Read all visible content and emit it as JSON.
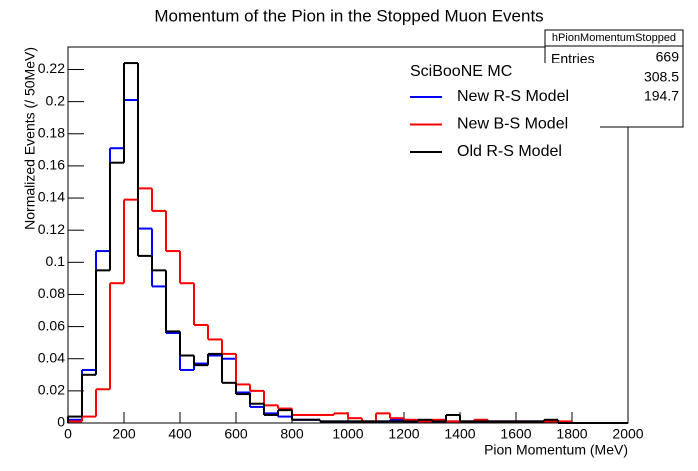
{
  "chart_data": {
    "type": "histogram",
    "title": "Momentum of the Pion in the Stopped Muon Events",
    "x_label": "Pion Momentum (MeV)",
    "y_label": "Normalized Events (/ 50MeV)",
    "bins": [
      0,
      50,
      100,
      150,
      200,
      250,
      300,
      350,
      400,
      450,
      500,
      550,
      600,
      650,
      700,
      750,
      800,
      850,
      900,
      950,
      1000,
      1050,
      1100,
      1150,
      1200,
      1250,
      1300,
      1350,
      1400,
      1450,
      1500,
      1550,
      1600,
      1650,
      1700,
      1750,
      1800,
      1850,
      1900,
      1950,
      2000
    ],
    "legend_title": "SciBooNE MC",
    "series": [
      {
        "name": "New R-S Model",
        "color": "#0000ff",
        "values": [
          0.002,
          0.033,
          0.107,
          0.171,
          0.201,
          0.121,
          0.085,
          0.056,
          0.033,
          0.037,
          0.042,
          0.04,
          0.019,
          0.01,
          0.006,
          0.004,
          0.002,
          0.002,
          0.001,
          0.001,
          0.001,
          0.001,
          0.001,
          0.002,
          0.001,
          0.001,
          0.001,
          0.001,
          0.001,
          0.001,
          0.001,
          0.001,
          0.001,
          0.001,
          0.001,
          0,
          0,
          0,
          0,
          0
        ]
      },
      {
        "name": "New B-S Model",
        "color": "#ff0000",
        "values": [
          0.001,
          0.004,
          0.021,
          0.087,
          0.139,
          0.146,
          0.132,
          0.107,
          0.087,
          0.061,
          0.052,
          0.043,
          0.024,
          0.02,
          0.011,
          0.009,
          0.005,
          0.005,
          0.005,
          0.006,
          0.003,
          0.001,
          0.006,
          0.003,
          0.002,
          0.001,
          0.002,
          0.001,
          0.001,
          0.002,
          0.001,
          0.001,
          0.001,
          0.001,
          0.001,
          0.001,
          0,
          0,
          0,
          0
        ]
      },
      {
        "name": "Old R-S Model",
        "color": "#000000",
        "values": [
          0.004,
          0.03,
          0.095,
          0.162,
          0.224,
          0.104,
          0.095,
          0.057,
          0.042,
          0.036,
          0.043,
          0.025,
          0.018,
          0.012,
          0.005,
          0.008,
          0.002,
          0.002,
          0.001,
          0.001,
          0.001,
          0.001,
          0.001,
          0.001,
          0.001,
          0.002,
          0.001,
          0.005,
          0.001,
          0.001,
          0.001,
          0.001,
          0.001,
          0.001,
          0.002,
          0,
          0,
          0,
          0,
          0
        ]
      }
    ],
    "xlim": [
      0,
      2000
    ],
    "xticks": [
      0,
      200,
      400,
      600,
      800,
      1000,
      1200,
      1400,
      1600,
      1800,
      2000
    ],
    "ylim": [
      0,
      0.234
    ],
    "yticks": [
      0,
      0.02,
      0.04,
      0.06,
      0.08,
      0.1,
      0.12,
      0.14,
      0.16,
      0.18,
      0.2,
      0.22
    ],
    "stats": {
      "title": "hPionMomentumStopped",
      "entries_label": "Entries",
      "values": [
        669,
        308.5,
        194.7
      ]
    }
  }
}
